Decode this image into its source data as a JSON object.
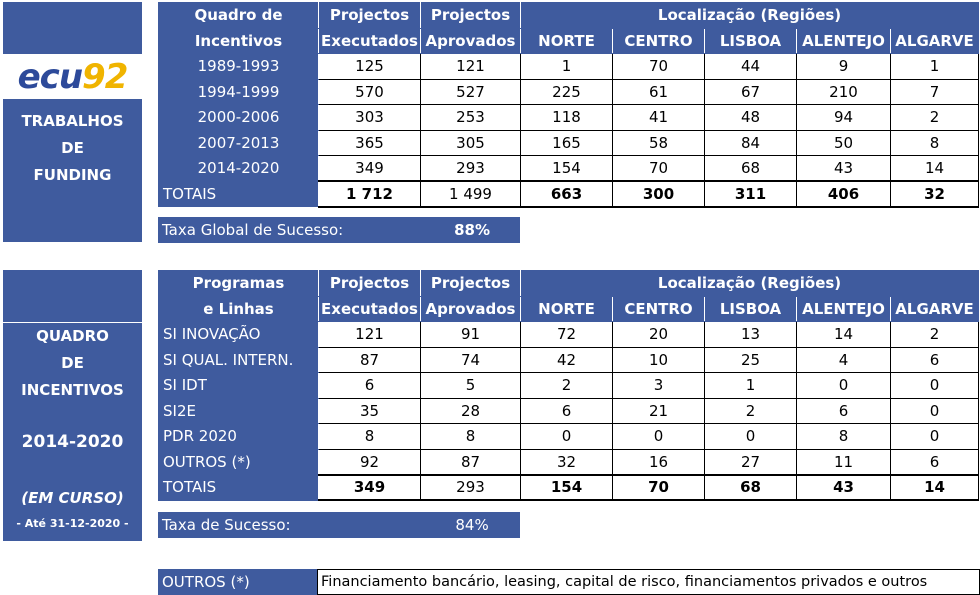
{
  "logo": {
    "prefix": "ecu",
    "digits": "92"
  },
  "side1": {
    "lines": [
      "TRABALHOS",
      "DE",
      "FUNDING"
    ]
  },
  "side2": {
    "lines": [
      "QUADRO",
      "DE",
      "INCENTIVOS",
      "2014-2020",
      "(EM CURSO)",
      "- Até 31-12-2020 -"
    ]
  },
  "table1": {
    "header": {
      "col1": [
        "Quadro de",
        "Incentivos"
      ],
      "col2": [
        "Projectos",
        "Executados"
      ],
      "col3": [
        "Projectos",
        "Aprovados"
      ],
      "regions_title": "Localização (Regiões)",
      "regions": [
        "NORTE",
        "CENTRO",
        "LISBOA",
        "ALENTEJO",
        "ALGARVE"
      ]
    },
    "rows": [
      {
        "label": "1989-1993",
        "exec": "125",
        "aprov": "121",
        "r": [
          "1",
          "70",
          "44",
          "9",
          "1"
        ]
      },
      {
        "label": "1994-1999",
        "exec": "570",
        "aprov": "527",
        "r": [
          "225",
          "61",
          "67",
          "210",
          "7"
        ]
      },
      {
        "label": "2000-2006",
        "exec": "303",
        "aprov": "253",
        "r": [
          "118",
          "41",
          "48",
          "94",
          "2"
        ]
      },
      {
        "label": "2007-2013",
        "exec": "365",
        "aprov": "305",
        "r": [
          "165",
          "58",
          "84",
          "50",
          "8"
        ]
      },
      {
        "label": "2014-2020",
        "exec": "349",
        "aprov": "293",
        "r": [
          "154",
          "70",
          "68",
          "43",
          "14"
        ]
      }
    ],
    "totals": {
      "label": "TOTAIS",
      "exec": "1 712",
      "aprov": "1 499",
      "r": [
        "663",
        "300",
        "311",
        "406",
        "32"
      ]
    },
    "rate": {
      "label": "Taxa Global de Sucesso:",
      "value": "88%"
    }
  },
  "table2": {
    "header": {
      "col1": [
        "Programas",
        "e Linhas"
      ],
      "col2": [
        "Projectos",
        "Executados"
      ],
      "col3": [
        "Projectos",
        "Aprovados"
      ],
      "regions_title": "Localização (Regiões)",
      "regions": [
        "NORTE",
        "CENTRO",
        "LISBOA",
        "ALENTEJO",
        "ALGARVE"
      ]
    },
    "rows": [
      {
        "label": "SI INOVAÇÃO",
        "exec": "121",
        "aprov": "91",
        "r": [
          "72",
          "20",
          "13",
          "14",
          "2"
        ]
      },
      {
        "label": "SI QUAL. INTERN.",
        "exec": "87",
        "aprov": "74",
        "r": [
          "42",
          "10",
          "25",
          "4",
          "6"
        ]
      },
      {
        "label": "SI IDT",
        "exec": "6",
        "aprov": "5",
        "r": [
          "2",
          "3",
          "1",
          "0",
          "0"
        ]
      },
      {
        "label": "SI2E",
        "exec": "35",
        "aprov": "28",
        "r": [
          "6",
          "21",
          "2",
          "6",
          "0"
        ]
      },
      {
        "label": "PDR 2020",
        "exec": "8",
        "aprov": "8",
        "r": [
          "0",
          "0",
          "0",
          "8",
          "0"
        ]
      },
      {
        "label": "OUTROS (*)",
        "exec": "92",
        "aprov": "87",
        "r": [
          "32",
          "16",
          "27",
          "11",
          "6"
        ]
      }
    ],
    "totals": {
      "label": "TOTAIS",
      "exec": "349",
      "aprov": "293",
      "r": [
        "154",
        "70",
        "68",
        "43",
        "14"
      ]
    },
    "rate": {
      "label": "Taxa de Sucesso:",
      "value": "84%"
    }
  },
  "note": {
    "label": "OUTROS (*)",
    "text": "Financiamento bancário, leasing, capital de risco, financiamentos privados e outros"
  },
  "colors": {
    "accent": "#3f5b9e",
    "logo_blue": "#2d4a9a",
    "logo_yellow": "#f0b400"
  }
}
